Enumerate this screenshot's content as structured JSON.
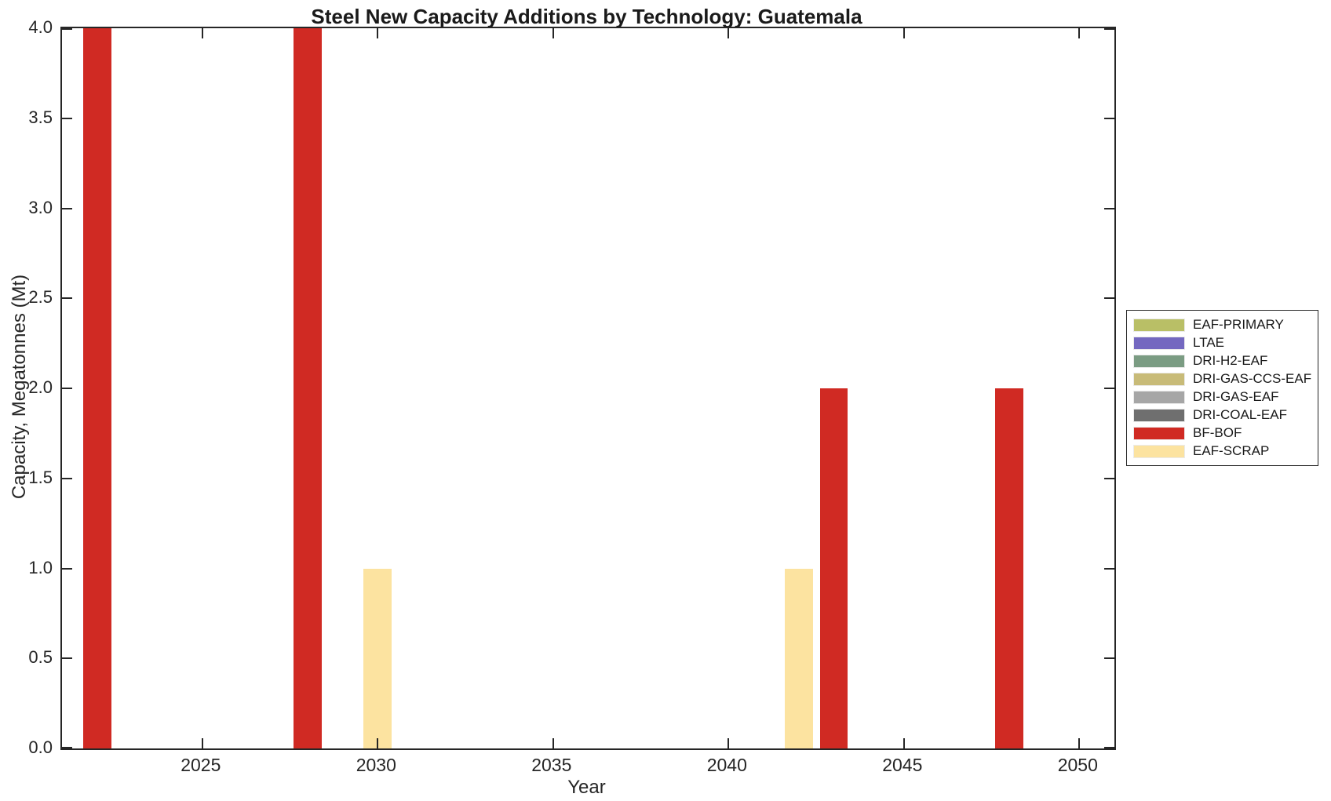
{
  "title": "Steel New Capacity Additions by Technology: Guatemala",
  "chart_data": {
    "type": "bar",
    "title": "Steel New Capacity Additions by Technology: Guatemala",
    "xlabel": "Year",
    "ylabel": "Capacity, Megatonnes (Mt)",
    "xlim": [
      2021,
      2051
    ],
    "ylim": [
      0,
      4
    ],
    "x_ticks": [
      2025,
      2030,
      2035,
      2040,
      2045,
      2050
    ],
    "y_ticks": [
      0,
      0.5,
      1,
      1.5,
      2,
      2.5,
      3,
      3.5,
      4
    ],
    "y_tick_labels": [
      "0.0",
      "0.5",
      "1.0",
      "1.5",
      "2.0",
      "2.5",
      "3.0",
      "3.5",
      "4.0"
    ],
    "grid": false,
    "bar_width_years": 0.8,
    "axis_color": "#262626",
    "legend_position": "outside-right",
    "series": [
      {
        "name": "EAF-PRIMARY",
        "color": "#b9bf66",
        "points": []
      },
      {
        "name": "LTAE",
        "color": "#7468c0",
        "points": []
      },
      {
        "name": "DRI-H2-EAF",
        "color": "#7b9c83",
        "points": []
      },
      {
        "name": "DRI-GAS-CCS-EAF",
        "color": "#c8bb78",
        "points": []
      },
      {
        "name": "DRI-GAS-EAF",
        "color": "#a6a6a6",
        "points": []
      },
      {
        "name": "DRI-COAL-EAF",
        "color": "#6f6f6f",
        "points": []
      },
      {
        "name": "BF-BOF",
        "color": "#d02a23",
        "points": [
          {
            "year": 2022,
            "value": 4.0
          },
          {
            "year": 2028,
            "value": 4.0
          },
          {
            "year": 2043,
            "value": 2.0
          },
          {
            "year": 2048,
            "value": 2.0
          }
        ]
      },
      {
        "name": "EAF-SCRAP",
        "color": "#fce3a0",
        "points": [
          {
            "year": 2030,
            "value": 1.0
          },
          {
            "year": 2042,
            "value": 1.0
          }
        ]
      }
    ]
  }
}
